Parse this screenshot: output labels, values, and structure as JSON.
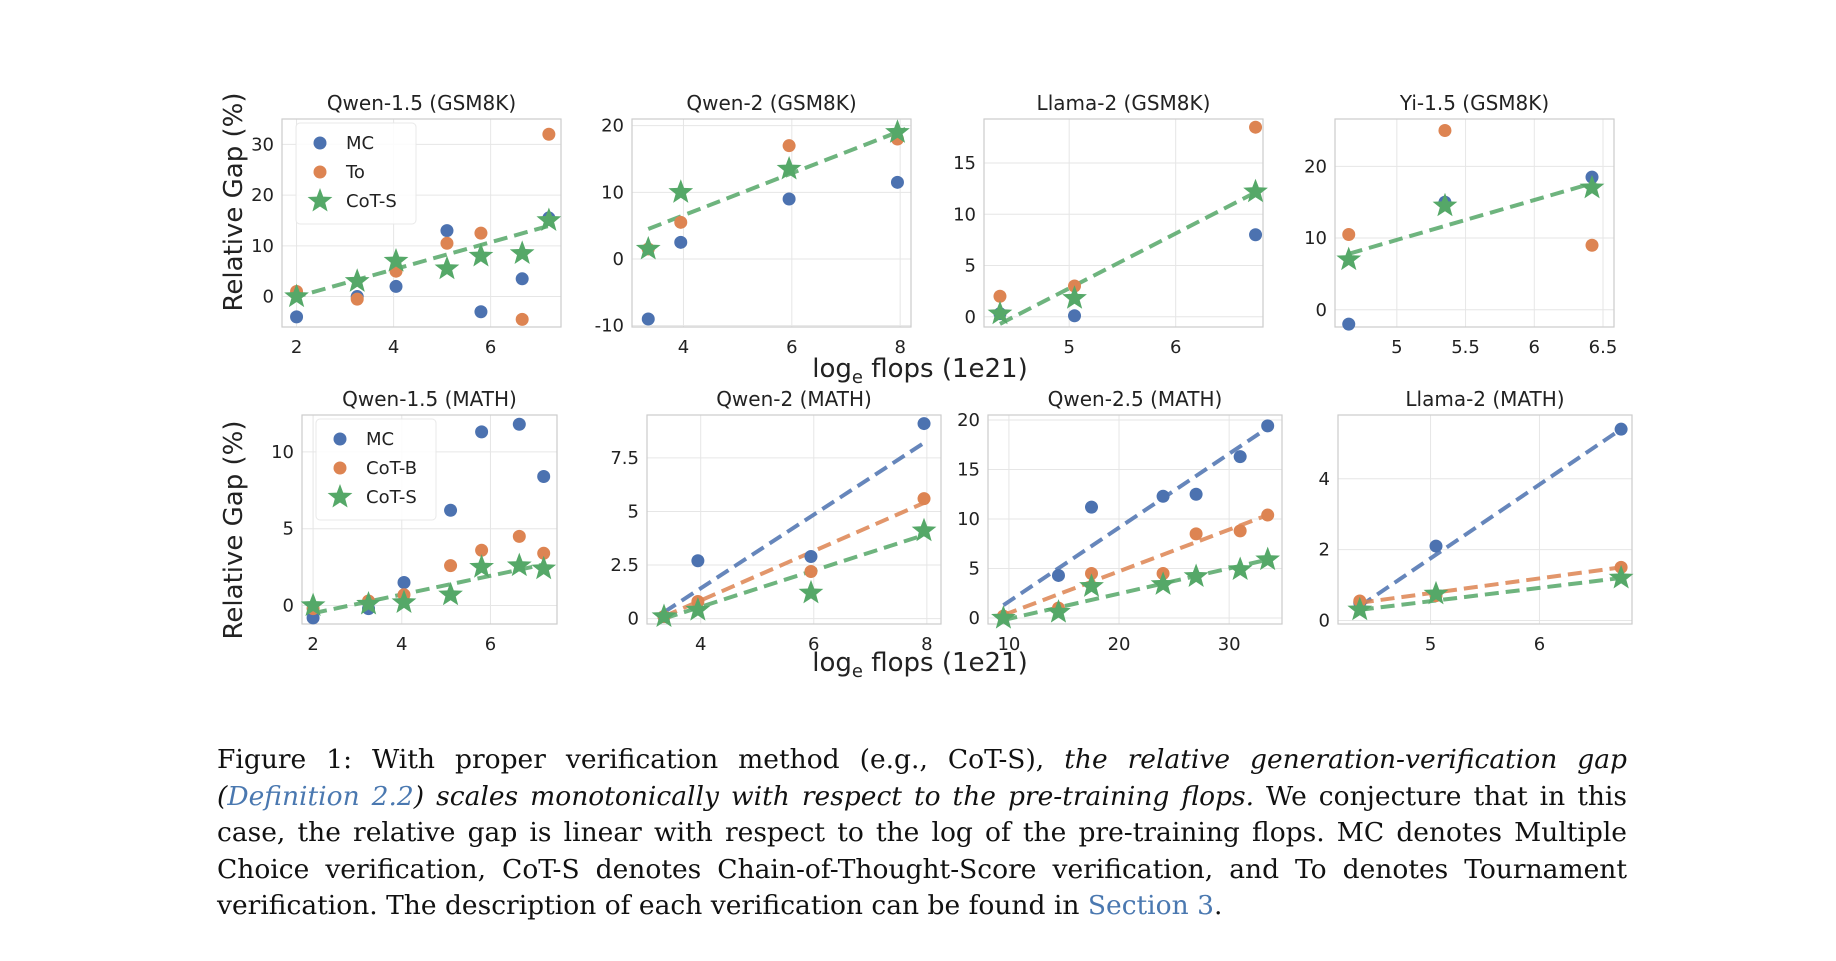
{
  "chart_data": [
    {
      "type": "scatter",
      "title": "Qwen-1.5 (GSM8K)",
      "ylabel": "Relative Gap (%)",
      "xlim": [
        1.7,
        7.45
      ],
      "ylim": [
        -6,
        35
      ],
      "xticks": [
        2,
        4,
        6
      ],
      "yticks": [
        0,
        10,
        20,
        30
      ],
      "legend": [
        "MC",
        "To",
        "CoT-S"
      ],
      "series": [
        {
          "name": "MC",
          "points": [
            [
              2.0,
              -4.0
            ],
            [
              3.25,
              0.0
            ],
            [
              4.05,
              2.0
            ],
            [
              5.1,
              13.0
            ],
            [
              5.8,
              -3.0
            ],
            [
              6.65,
              3.5
            ],
            [
              7.2,
              15.5
            ]
          ]
        },
        {
          "name": "To",
          "points": [
            [
              2.0,
              1.0
            ],
            [
              3.25,
              -0.5
            ],
            [
              4.05,
              5.0
            ],
            [
              5.1,
              10.5
            ],
            [
              5.8,
              12.5
            ],
            [
              6.65,
              -4.5
            ],
            [
              7.2,
              32.0
            ]
          ]
        },
        {
          "name": "CoT-S",
          "points": [
            [
              2.0,
              0.0
            ],
            [
              3.25,
              3.0
            ],
            [
              4.05,
              7.0
            ],
            [
              5.1,
              5.5
            ],
            [
              5.8,
              8.0
            ],
            [
              6.65,
              8.5
            ],
            [
              7.2,
              15.0
            ]
          ]
        }
      ],
      "fits": [
        {
          "series": "CoT-S",
          "from": [
            1.9,
            -0.3
          ],
          "to": [
            7.3,
            14.2
          ]
        }
      ]
    },
    {
      "type": "scatter",
      "title": "Qwen-2 (GSM8K)",
      "xlim": [
        3.05,
        8.2
      ],
      "ylim": [
        -10.2,
        21
      ],
      "xticks": [
        4,
        6,
        8
      ],
      "yticks": [
        -10,
        0,
        10,
        20
      ],
      "series": [
        {
          "name": "MC",
          "points": [
            [
              3.35,
              -9.0
            ],
            [
              3.95,
              2.5
            ],
            [
              5.95,
              9.0
            ],
            [
              7.95,
              11.5
            ]
          ]
        },
        {
          "name": "To",
          "points": [
            [
              3.35,
              1.5
            ],
            [
              3.95,
              5.5
            ],
            [
              5.95,
              17.0
            ],
            [
              7.95,
              18.0
            ]
          ]
        },
        {
          "name": "CoT-S",
          "points": [
            [
              3.35,
              1.5
            ],
            [
              3.95,
              10.0
            ],
            [
              5.95,
              13.5
            ],
            [
              7.95,
              19.0
            ]
          ]
        }
      ],
      "fits": [
        {
          "series": "CoT-S",
          "from": [
            3.35,
            4.5
          ],
          "to": [
            8.1,
            19.5
          ]
        }
      ]
    },
    {
      "type": "scatter",
      "title": "Llama-2 (GSM8K)",
      "xlim": [
        4.2,
        6.82
      ],
      "ylim": [
        -1,
        19.3
      ],
      "xticks": [
        5,
        6
      ],
      "yticks": [
        0,
        5,
        10,
        15
      ],
      "series": [
        {
          "name": "MC",
          "points": [
            [
              4.35,
              0.3
            ],
            [
              5.05,
              0.1
            ],
            [
              6.75,
              8.0
            ]
          ]
        },
        {
          "name": "To",
          "points": [
            [
              4.35,
              2.0
            ],
            [
              5.05,
              3.0
            ],
            [
              6.75,
              18.5
            ]
          ]
        },
        {
          "name": "CoT-S",
          "points": [
            [
              4.35,
              0.3
            ],
            [
              5.05,
              1.8
            ],
            [
              6.75,
              12.2
            ]
          ]
        }
      ],
      "fits": [
        {
          "series": "CoT-S",
          "from": [
            4.35,
            -0.7
          ],
          "to": [
            6.78,
            12.3
          ]
        }
      ]
    },
    {
      "type": "scatter",
      "title": "Yi-1.5 (GSM8K)",
      "xlim": [
        4.55,
        6.58
      ],
      "ylim": [
        -2.4,
        26.6
      ],
      "xticks": [
        5.0,
        5.5,
        6.0,
        6.5
      ],
      "yticks": [
        0,
        10,
        20
      ],
      "series": [
        {
          "name": "MC",
          "points": [
            [
              4.65,
              -2.0
            ],
            [
              5.35,
              15.0
            ],
            [
              6.42,
              18.5
            ]
          ]
        },
        {
          "name": "To",
          "points": [
            [
              4.65,
              10.5
            ],
            [
              5.35,
              25.0
            ],
            [
              6.42,
              9.0
            ]
          ]
        },
        {
          "name": "CoT-S",
          "points": [
            [
              4.65,
              7.0
            ],
            [
              5.35,
              14.5
            ],
            [
              6.42,
              17.0
            ]
          ]
        }
      ],
      "fits": [
        {
          "series": "CoT-S",
          "from": [
            4.65,
            7.8
          ],
          "to": [
            6.45,
            17.8
          ]
        }
      ]
    },
    {
      "type": "scatter",
      "title": "Qwen-1.5 (MATH)",
      "ylabel": "Relative Gap (%)",
      "xlim": [
        1.75,
        7.5
      ],
      "ylim": [
        -1.2,
        12.4
      ],
      "xticks": [
        2,
        4,
        6
      ],
      "yticks": [
        0,
        5,
        10
      ],
      "legend": [
        "MC",
        "CoT-B",
        "CoT-S"
      ],
      "series": [
        {
          "name": "MC",
          "points": [
            [
              2.0,
              -0.8
            ],
            [
              3.25,
              -0.2
            ],
            [
              4.05,
              1.5
            ],
            [
              5.1,
              6.2
            ],
            [
              5.8,
              11.3
            ],
            [
              6.65,
              11.8
            ],
            [
              7.2,
              8.4
            ]
          ]
        },
        {
          "name": "CoT-B",
          "points": [
            [
              2.0,
              -0.2
            ],
            [
              3.25,
              0.3
            ],
            [
              4.05,
              0.7
            ],
            [
              5.1,
              2.6
            ],
            [
              5.8,
              3.6
            ],
            [
              6.65,
              4.5
            ],
            [
              7.2,
              3.4
            ]
          ]
        },
        {
          "name": "CoT-S",
          "points": [
            [
              2.0,
              0.0
            ],
            [
              3.25,
              0.1
            ],
            [
              4.05,
              0.2
            ],
            [
              5.1,
              0.7
            ],
            [
              5.8,
              2.5
            ],
            [
              6.65,
              2.6
            ],
            [
              7.2,
              2.4
            ]
          ]
        }
      ],
      "fits": [
        {
          "series": "CoT-S",
          "from": [
            2.0,
            -0.5
          ],
          "to": [
            7.25,
            2.7
          ]
        }
      ]
    },
    {
      "type": "scatter",
      "title": "Qwen-2 (MATH)",
      "xlim": [
        3.05,
        8.25
      ],
      "ylim": [
        -0.25,
        9.5
      ],
      "xticks": [
        4,
        6,
        8
      ],
      "yticks": [
        0.0,
        2.5,
        5.0,
        7.5
      ],
      "series": [
        {
          "name": "MC",
          "points": [
            [
              3.35,
              0.1
            ],
            [
              3.95,
              2.7
            ],
            [
              5.95,
              2.9
            ],
            [
              7.95,
              9.1
            ]
          ]
        },
        {
          "name": "CoT-B",
          "points": [
            [
              3.35,
              0.1
            ],
            [
              3.95,
              0.8
            ],
            [
              5.95,
              2.2
            ],
            [
              7.95,
              5.6
            ]
          ]
        },
        {
          "name": "CoT-S",
          "points": [
            [
              3.35,
              0.1
            ],
            [
              3.95,
              0.4
            ],
            [
              5.95,
              1.2
            ],
            [
              7.95,
              4.1
            ]
          ]
        }
      ],
      "fits": [
        {
          "series": "MC",
          "from": [
            3.35,
            0.3
          ],
          "to": [
            7.95,
            8.2
          ]
        },
        {
          "series": "CoT-B",
          "from": [
            3.35,
            0.1
          ],
          "to": [
            7.95,
            5.4
          ]
        },
        {
          "series": "CoT-S",
          "from": [
            3.35,
            0.0
          ],
          "to": [
            7.95,
            3.9
          ]
        }
      ]
    },
    {
      "type": "scatter",
      "title": "Qwen-2.5 (MATH)",
      "xlim": [
        8.1,
        34.8
      ],
      "ylim": [
        -0.6,
        20.5
      ],
      "xticks": [
        10,
        20,
        30
      ],
      "yticks": [
        0,
        5,
        10,
        15,
        20
      ],
      "series": [
        {
          "name": "MC",
          "points": [
            [
              14.5,
              4.3
            ],
            [
              17.5,
              11.2
            ],
            [
              24.0,
              12.3
            ],
            [
              27.0,
              12.5
            ],
            [
              31.0,
              16.3
            ],
            [
              33.5,
              19.4
            ]
          ]
        },
        {
          "name": "CoT-B",
          "points": [
            [
              9.5,
              0.2
            ],
            [
              14.5,
              1.0
            ],
            [
              17.5,
              4.5
            ],
            [
              24.0,
              4.5
            ],
            [
              27.0,
              8.5
            ],
            [
              31.0,
              8.8
            ],
            [
              33.5,
              10.4
            ]
          ]
        },
        {
          "name": "CoT-S",
          "points": [
            [
              9.5,
              0.0
            ],
            [
              14.5,
              0.6
            ],
            [
              17.5,
              3.2
            ],
            [
              24.0,
              3.4
            ],
            [
              27.0,
              4.2
            ],
            [
              31.0,
              4.9
            ],
            [
              33.5,
              5.9
            ]
          ]
        }
      ],
      "fits": [
        {
          "series": "MC",
          "from": [
            9.5,
            1.3
          ],
          "to": [
            33.5,
            19.2
          ]
        },
        {
          "series": "CoT-B",
          "from": [
            9.5,
            0.3
          ],
          "to": [
            33.5,
            10.4
          ]
        },
        {
          "series": "CoT-S",
          "from": [
            9.5,
            -0.2
          ],
          "to": [
            33.5,
            5.9
          ]
        }
      ]
    },
    {
      "type": "scatter",
      "title": "Llama-2 (MATH)",
      "xlim": [
        4.15,
        6.85
      ],
      "ylim": [
        -0.1,
        5.8
      ],
      "xticks": [
        5,
        6
      ],
      "yticks": [
        0,
        2,
        4
      ],
      "series": [
        {
          "name": "MC",
          "points": [
            [
              4.35,
              0.5
            ],
            [
              5.05,
              2.1
            ],
            [
              6.75,
              5.4
            ]
          ]
        },
        {
          "name": "CoT-B",
          "points": [
            [
              4.35,
              0.55
            ],
            [
              5.05,
              0.7
            ],
            [
              6.75,
              1.5
            ]
          ]
        },
        {
          "name": "CoT-S",
          "points": [
            [
              4.35,
              0.3
            ],
            [
              5.05,
              0.75
            ],
            [
              6.75,
              1.2
            ]
          ]
        }
      ],
      "fits": [
        {
          "series": "MC",
          "from": [
            4.35,
            0.4
          ],
          "to": [
            6.75,
            5.4
          ]
        },
        {
          "series": "CoT-B",
          "from": [
            4.35,
            0.5
          ],
          "to": [
            6.75,
            1.5
          ]
        },
        {
          "series": "CoT-S",
          "from": [
            4.35,
            0.3
          ],
          "to": [
            6.75,
            1.2
          ]
        }
      ]
    }
  ],
  "xaxis_label": {
    "base": "log",
    "sub": "e",
    "rest": " flops (1e21)"
  },
  "caption": {
    "prefix": "Figure 1: With proper verification method (e.g., CoT-S), ",
    "italic1": "the relative generation-verification gap (",
    "link1": "Definition 2.2",
    "italic2": ") scales monotonically with respect to the pre-training flops.",
    "text2": " We conjecture that in this case, the relative gap is linear with respect to the log of the pre-training flops. MC denotes Multiple Choice verification, CoT-S denotes Chain-of-Thought-Score verification, and To denotes Tournament verification. The description of each verification can be found in ",
    "link2": "Section 3",
    "suffix": "."
  },
  "colors": {
    "MC": "#4c72b0",
    "To": "#dd8452",
    "CoT-B": "#dd8452",
    "CoT-S": "#55a868",
    "grid": "#e6e6e6",
    "axis": "#cccccc"
  }
}
